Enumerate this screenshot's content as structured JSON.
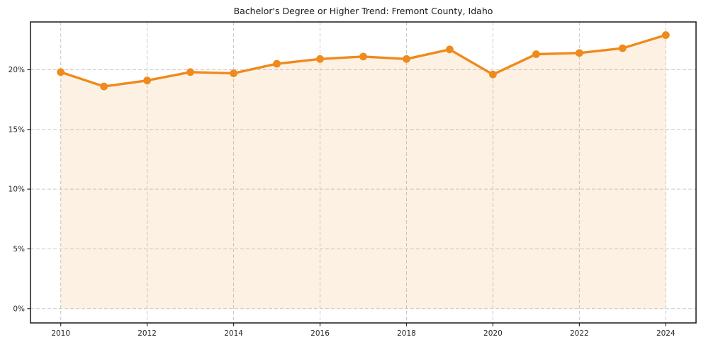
{
  "title": "Bachelor's Degree or Higher Trend: Fremont County, Idaho",
  "chart_data": {
    "type": "line",
    "title": "Bachelor's Degree or Higher Trend: Fremont County, Idaho",
    "xlabel": "",
    "ylabel": "",
    "x": [
      2010,
      2011,
      2012,
      2013,
      2014,
      2015,
      2016,
      2017,
      2018,
      2019,
      2020,
      2021,
      2022,
      2023,
      2024
    ],
    "values": [
      19.8,
      18.6,
      19.1,
      19.8,
      19.7,
      20.5,
      20.9,
      21.1,
      20.9,
      21.7,
      19.6,
      21.3,
      21.4,
      21.8,
      22.9
    ],
    "xlim": [
      2009.3,
      2024.7
    ],
    "ylim": [
      -1.2,
      24.0
    ],
    "xticks": [
      2010,
      2012,
      2014,
      2016,
      2018,
      2020,
      2022,
      2024
    ],
    "yticks": [
      0,
      5,
      10,
      15,
      20
    ],
    "ytick_labels": [
      "0%",
      "5%",
      "10%",
      "15%",
      "20%"
    ],
    "grid": true,
    "grid_style": "dashed",
    "legend": false,
    "marker": "circle",
    "area_fill": true,
    "colors": {
      "line": "#EF8A1C",
      "marker": "#EF8A1C",
      "area": "#EF8A1C",
      "area_opacity": 0.12,
      "grid": "#C9C9C9",
      "axis": "#262626",
      "tick_text": "#262626",
      "title_text": "#1A1A1A",
      "background": "#FFFFFF"
    }
  }
}
